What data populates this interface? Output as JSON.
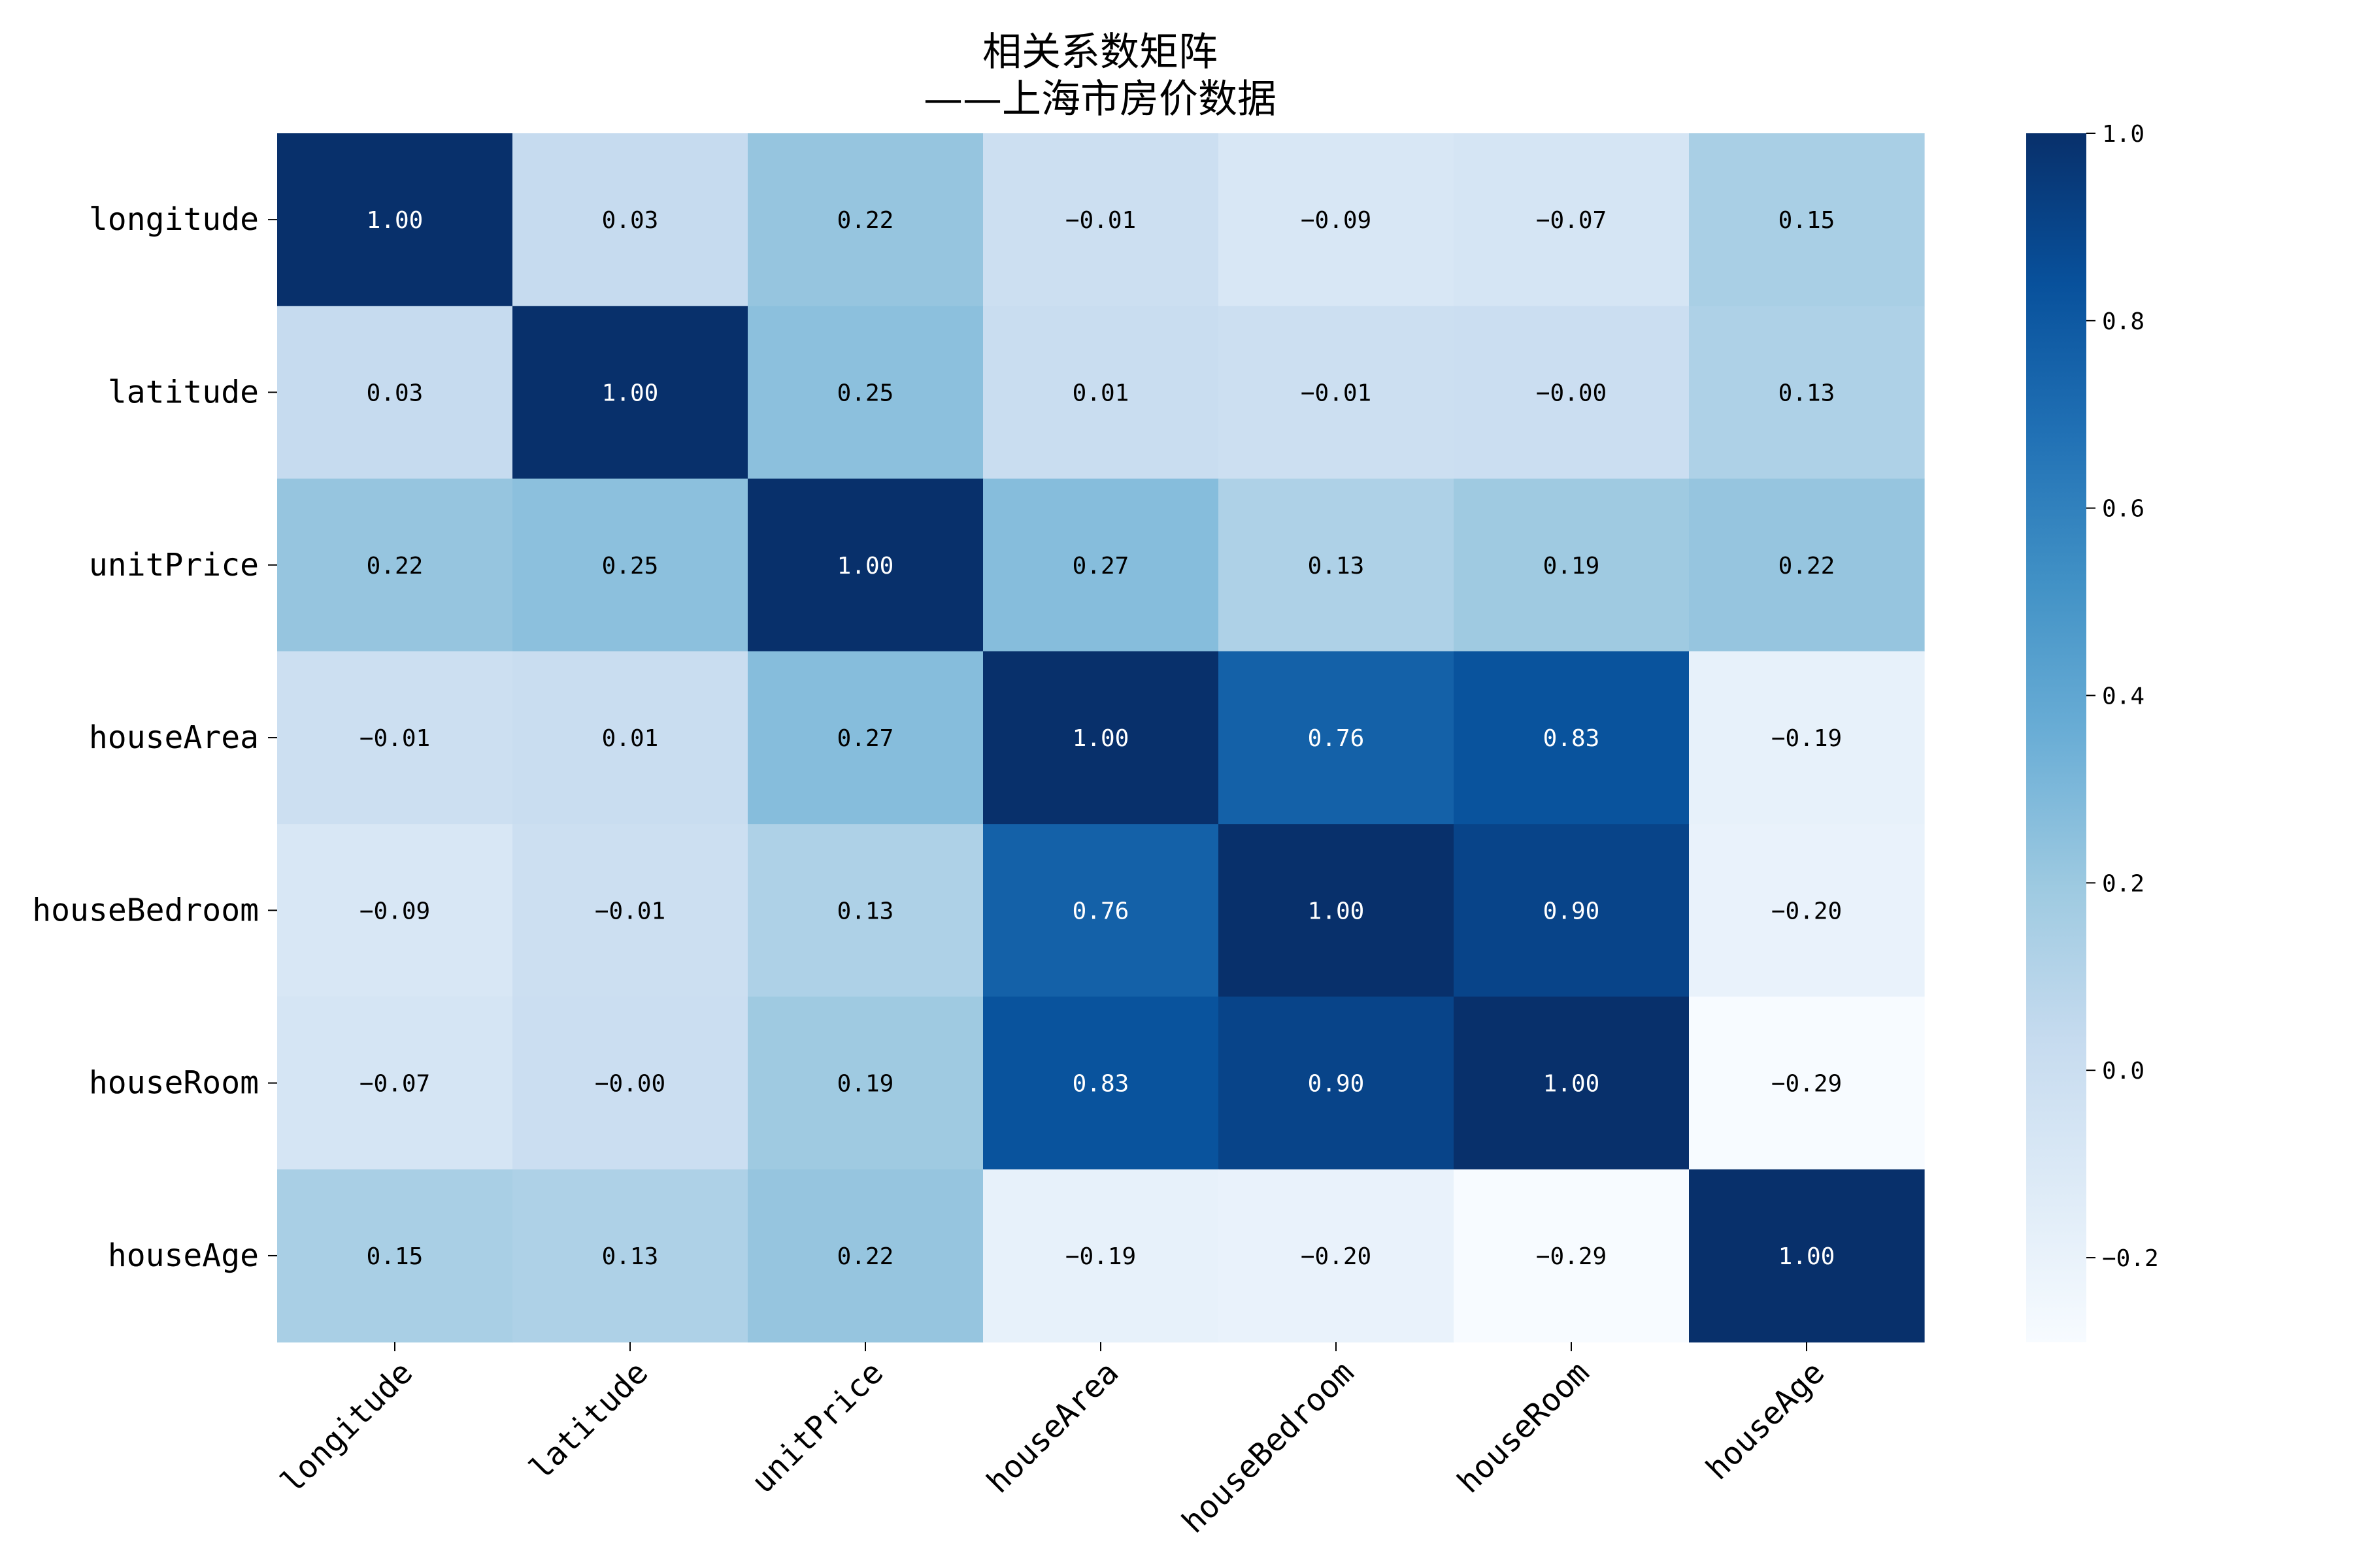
{
  "chart_data": {
    "type": "heatmap",
    "title": "相关系数矩阵",
    "subtitle": "——上海市房价数据",
    "labels": [
      "longitude",
      "latitude",
      "unitPrice",
      "houseArea",
      "houseBedroom",
      "houseRoom",
      "houseAge"
    ],
    "values": [
      [
        1.0,
        0.03,
        0.22,
        -0.01,
        -0.09,
        -0.07,
        0.15
      ],
      [
        0.03,
        1.0,
        0.25,
        0.01,
        -0.01,
        -0.0,
        0.13
      ],
      [
        0.22,
        0.25,
        1.0,
        0.27,
        0.13,
        0.19,
        0.22
      ],
      [
        -0.01,
        0.01,
        0.27,
        1.0,
        0.76,
        0.83,
        -0.19
      ],
      [
        -0.09,
        -0.01,
        0.13,
        0.76,
        1.0,
        0.9,
        -0.2
      ],
      [
        -0.07,
        -0.0,
        0.19,
        0.83,
        0.9,
        1.0,
        -0.29
      ],
      [
        0.15,
        0.13,
        0.22,
        -0.19,
        -0.2,
        -0.29,
        1.0
      ]
    ],
    "value_labels": [
      [
        "1.00",
        "0.03",
        "0.22",
        "−0.01",
        "−0.09",
        "−0.07",
        "0.15"
      ],
      [
        "0.03",
        "1.00",
        "0.25",
        "0.01",
        "−0.01",
        "−0.00",
        "0.13"
      ],
      [
        "0.22",
        "0.25",
        "1.00",
        "0.27",
        "0.13",
        "0.19",
        "0.22"
      ],
      [
        "−0.01",
        "0.01",
        "0.27",
        "1.00",
        "0.76",
        "0.83",
        "−0.19"
      ],
      [
        "−0.09",
        "−0.01",
        "0.13",
        "0.76",
        "1.00",
        "0.90",
        "−0.20"
      ],
      [
        "−0.07",
        "−0.00",
        "0.19",
        "0.83",
        "0.90",
        "1.00",
        "−0.29"
      ],
      [
        "0.15",
        "0.13",
        "0.22",
        "−0.19",
        "−0.20",
        "−0.29",
        "1.00"
      ]
    ],
    "color_range": [
      -0.29,
      1.0
    ],
    "colormap": "Blues",
    "colorbar": {
      "ticks": [
        -0.2,
        0.0,
        0.2,
        0.4,
        0.6,
        0.8,
        1.0
      ],
      "tick_labels": [
        "−0.2",
        "0.0",
        "0.2",
        "0.4",
        "0.6",
        "0.8",
        "1.0"
      ]
    }
  }
}
